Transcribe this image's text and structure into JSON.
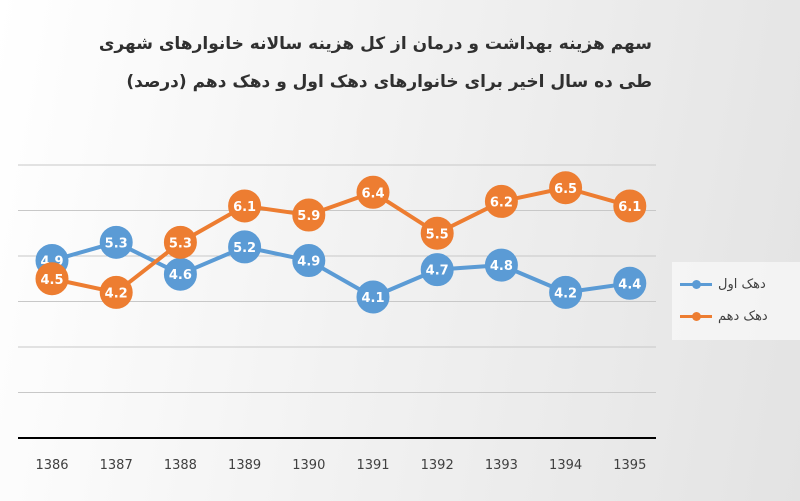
{
  "chart_data": {
    "type": "line",
    "title_line1": "سهم هزینه بهداشت و درمان از کل هزینه سالانه خانوارهای  شهری",
    "title_line2": "طی ده سال اخیر برای خانوارهای  دهک اول و دهک دهم (درصد)",
    "categories": [
      "1386",
      "1387",
      "1388",
      "1389",
      "1390",
      "1391",
      "1392",
      "1393",
      "1394",
      "1395"
    ],
    "series": [
      {
        "name": "دهک اول",
        "color": "#5b9bd5",
        "values": [
          4.9,
          5.3,
          4.6,
          5.2,
          4.9,
          4.1,
          4.7,
          4.8,
          4.2,
          4.4
        ]
      },
      {
        "name": "دهک دهم",
        "color": "#ed7d31",
        "values": [
          4.5,
          4.2,
          5.3,
          6.1,
          5.9,
          6.4,
          5.5,
          6.2,
          6.5,
          6.1
        ]
      }
    ],
    "ylim": [
      1,
      7
    ],
    "grid": true,
    "legend_position": "right"
  }
}
